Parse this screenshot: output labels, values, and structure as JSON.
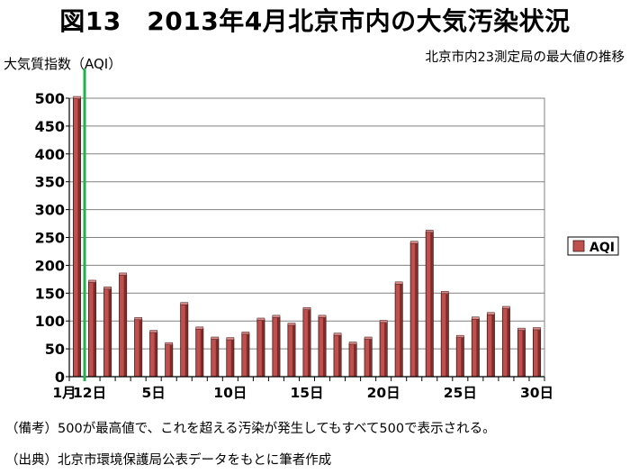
{
  "chart_data": {
    "type": "bar",
    "title": "図13　2013年4月北京市内の大気汚染状況",
    "subtitle": "北京市内23測定局の最大値の推移",
    "ylabel": "大気質指数（AQI）",
    "xlabel": "",
    "ylim": [
      0,
      500
    ],
    "y_ticks": [
      "0",
      "50",
      "100",
      "150",
      "200",
      "250",
      "300",
      "350",
      "400",
      "450",
      "500"
    ],
    "x_tick_labels": [
      "1月",
      "12日",
      "5日",
      "10日",
      "15日",
      "20日",
      "25日",
      "30日"
    ],
    "grid": true,
    "legend_position": "right",
    "series": [
      {
        "name": "AQI",
        "color": "#c0504d",
        "x": [
          0,
          1,
          2,
          3,
          4,
          5,
          6,
          7,
          8,
          9,
          10,
          11,
          12,
          13,
          14,
          15,
          16,
          17,
          18,
          19,
          20,
          21,
          22,
          23,
          24,
          25,
          26,
          27,
          28,
          29,
          30
        ],
        "values": [
          500,
          170,
          158,
          183,
          103,
          80,
          58,
          130,
          86,
          68,
          67,
          77,
          102,
          107,
          93,
          121,
          107,
          75,
          59,
          68,
          98,
          167,
          240,
          260,
          150,
          71,
          104,
          112,
          123,
          84,
          85
        ]
      }
    ],
    "marker": {
      "position": 0.5,
      "color": "#22b14c"
    }
  },
  "notes": {
    "remark": "（備考）500が最高値で、これを超える汚染が発生してもすべて500で表示される。",
    "source": "（出典）北京市環境保護局公表データをもとに筆者作成"
  }
}
